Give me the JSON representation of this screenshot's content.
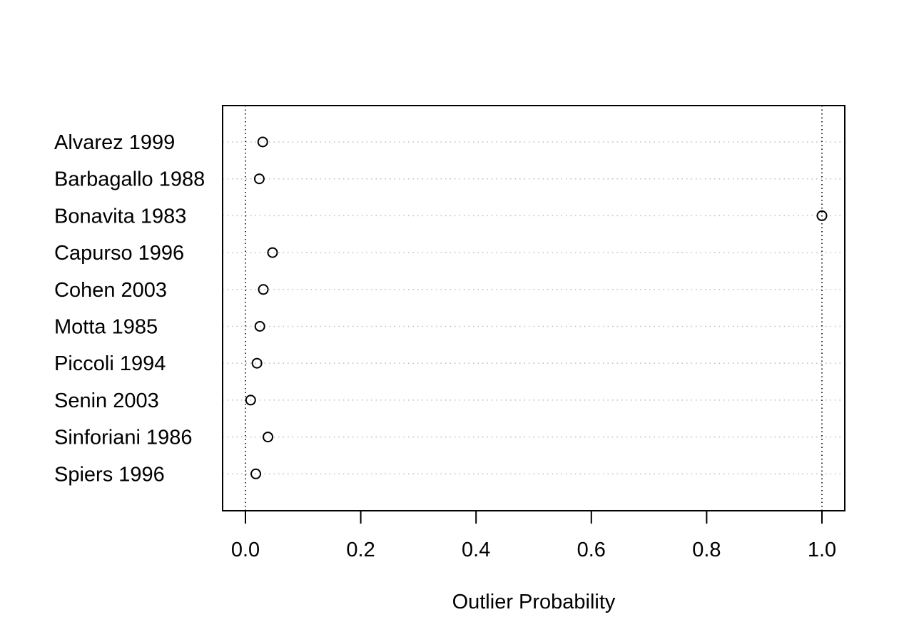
{
  "chart_data": {
    "type": "scatter",
    "title": "",
    "xlabel": "Outlier Probability",
    "ylabel": "",
    "xlim": [
      -0.04,
      1.04
    ],
    "xticks": [
      "0.0",
      "0.2",
      "0.4",
      "0.6",
      "0.8",
      "1.0"
    ],
    "xtick_values": [
      0,
      0.2,
      0.4,
      0.6,
      0.8,
      1.0
    ],
    "reference_lines_x": [
      0,
      1
    ],
    "grid": "horizontal dotted",
    "marker": "open circle",
    "categories": [
      "Alvarez 1999",
      "Barbagallo 1988",
      "Bonavita 1983",
      "Capurso 1996",
      "Cohen 2003",
      "Motta 1985",
      "Piccoli 1994",
      "Senin 2003",
      "Sinforiani 1986",
      "Spiers 1996"
    ],
    "values": [
      0.03,
      0.024,
      1.0,
      0.047,
      0.031,
      0.025,
      0.02,
      0.009,
      0.039,
      0.018
    ]
  }
}
